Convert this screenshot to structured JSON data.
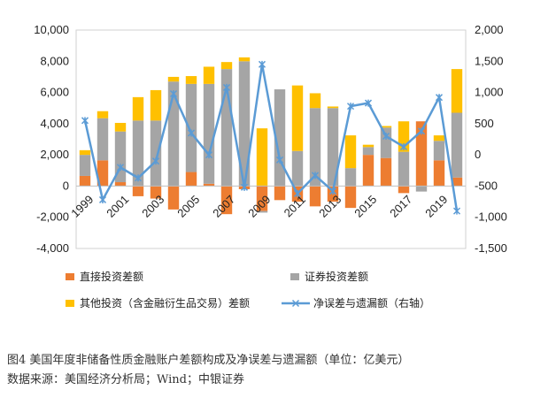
{
  "caption": {
    "title": "图4   美国年度非储备性质金融账户差额构成及净误差与遗漏额（单位：亿美元）",
    "source": "数据来源：美国经济分析局；Wind；中银证券"
  },
  "chart_data": {
    "type": "bar",
    "subtype": "stacked-bar-with-secondary-line",
    "categories": [
      "1999",
      "2000",
      "2001",
      "2002",
      "2003",
      "2004",
      "2005",
      "2006",
      "2007",
      "2008",
      "2009",
      "2010",
      "2011",
      "2012",
      "2013",
      "2014",
      "2015",
      "2016",
      "2017",
      "2018",
      "2019",
      "2020"
    ],
    "x_tick_labels": [
      "1999",
      "2001",
      "2003",
      "2005",
      "2007",
      "2009",
      "2011",
      "2013",
      "2015",
      "2017",
      "2019"
    ],
    "left_axis": {
      "ylim": [
        -4000,
        10000
      ],
      "ticks": [
        "-4,000",
        "-2,000",
        "0",
        "2,000",
        "4,000",
        "6,000",
        "8,000",
        "10,000"
      ]
    },
    "right_axis": {
      "ylim": [
        -1500,
        2000
      ],
      "ticks": [
        "-1,500",
        "-1,000",
        "-500",
        "0",
        "500",
        "1,000",
        "1,500",
        "2,000"
      ]
    },
    "colors": {
      "direct": "#ED7D31",
      "securities": "#A5A5A5",
      "other": "#FFC000",
      "line": "#5B9BD5"
    },
    "series": [
      {
        "name": "直接投资差额",
        "axis": "left",
        "color": "#ED7D31",
        "values": [
          650,
          1650,
          250,
          -650,
          -800,
          -1500,
          900,
          150,
          -1800,
          -200,
          -1600,
          -900,
          -1000,
          -1300,
          -1000,
          -1400,
          2000,
          1800,
          -450,
          4150,
          1650,
          550
        ]
      },
      {
        "name": "证券投资差额",
        "axis": "left",
        "color": "#A5A5A5",
        "values": [
          1350,
          2700,
          3250,
          4200,
          4200,
          6700,
          5650,
          6400,
          7500,
          8000,
          -100,
          6200,
          2250,
          5000,
          5000,
          1150,
          500,
          1950,
          2200,
          -350,
          1250,
          4150
        ]
      },
      {
        "name": "其他投资（含金融衍生品交易）差额",
        "axis": "left",
        "color": "#FFC000",
        "values": [
          300,
          450,
          550,
          1500,
          1950,
          300,
          500,
          1100,
          450,
          250,
          3700,
          0,
          4200,
          950,
          100,
          2100,
          150,
          100,
          1950,
          0,
          350,
          2800
        ]
      },
      {
        "name": "净误差与遗漏额（右轴）",
        "axis": "right",
        "type": "line",
        "color": "#5B9BD5",
        "values": [
          550,
          -720,
          -200,
          -370,
          -100,
          980,
          350,
          0,
          1080,
          -520,
          1450,
          -80,
          -620,
          -330,
          -580,
          780,
          830,
          300,
          130,
          380,
          920,
          -900
        ]
      }
    ]
  }
}
